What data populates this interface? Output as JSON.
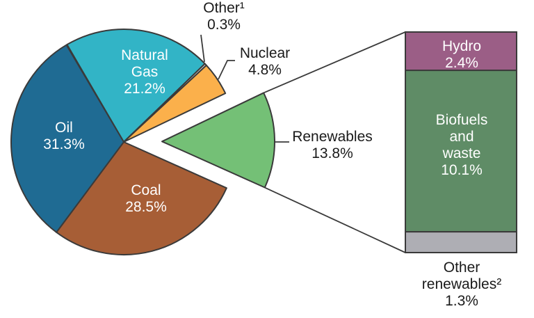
{
  "figure": {
    "background": "#ffffff",
    "outline_color": "#3a3a3a",
    "text_color_dark": "#1a1a1a",
    "text_color_light": "#ffffff"
  },
  "chart_data": {
    "type": "pie",
    "title": "",
    "unit": "%",
    "legend": "none",
    "pie": {
      "direction": "clockwise",
      "exploded_slice": "Renewables",
      "slices": [
        {
          "name": "Natural Gas",
          "value": 21.2,
          "value_label": "21.2%",
          "color": "#32B4C6"
        },
        {
          "name": "Other¹",
          "value": 0.3,
          "value_label": "0.3%",
          "color": "#E6E6E6"
        },
        {
          "name": "Nuclear",
          "value": 4.8,
          "value_label": "4.8%",
          "color": "#FBB04B"
        },
        {
          "name": "Renewables",
          "value": 13.8,
          "value_label": "13.8%",
          "color": "#74C076",
          "exploded": true
        },
        {
          "name": "Coal",
          "value": 28.5,
          "value_label": "28.5%",
          "color": "#A75E36"
        },
        {
          "name": "Oil",
          "value": 31.3,
          "value_label": "31.3%",
          "color": "#1F6B93"
        }
      ]
    },
    "breakout_bar": {
      "parent": "Renewables",
      "parent_total": 13.8,
      "segments": [
        {
          "name": "Hydro",
          "value": 2.4,
          "value_label": "2.4%",
          "color": "#9B5E86"
        },
        {
          "name": "Biofuels and waste",
          "value": 10.1,
          "value_label": "10.1%",
          "color": "#5F8C66"
        },
        {
          "name": "Other renewables²",
          "value": 1.3,
          "value_label": "1.3%",
          "color": "#AEAEB4"
        }
      ]
    }
  }
}
